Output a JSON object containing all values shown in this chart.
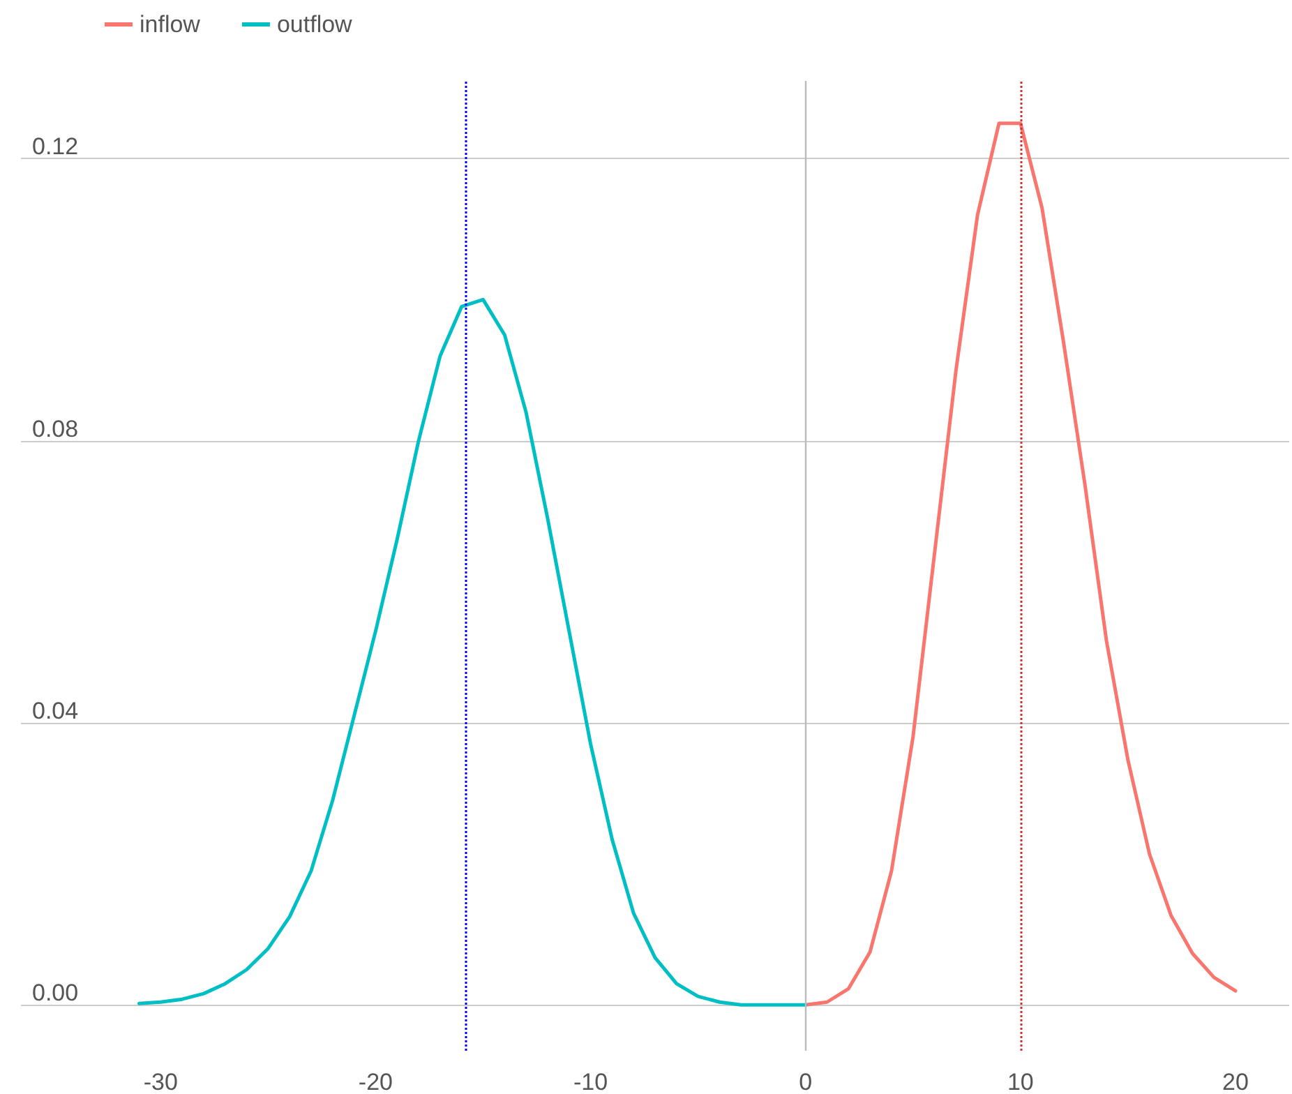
{
  "chart_data": {
    "type": "line",
    "legend": "top left",
    "grid": "y",
    "marker": "none",
    "line_style": "solid",
    "xlim": [
      -36.5,
      22.5
    ],
    "xticks": [
      -30,
      -20,
      -10,
      0,
      10,
      20
    ],
    "ylim": [
      -0.0065,
      0.131
    ],
    "yticks": [
      {
        "value": 0,
        "label": "0.00"
      },
      {
        "value": 0.04,
        "label": "0.04"
      },
      {
        "value": 0.08,
        "label": "0.08"
      },
      {
        "value": 0.12,
        "label": "0.12"
      }
    ],
    "series": [
      {
        "name": "inflow",
        "color": "#f8766d",
        "x": [
          0,
          1,
          2,
          3,
          4,
          5,
          6,
          7,
          8,
          9,
          10,
          11,
          12,
          13,
          14,
          15,
          16,
          17,
          18,
          19,
          20
        ],
        "values": [
          0,
          0.0004,
          0.0023,
          0.0075,
          0.019,
          0.038,
          0.064,
          0.09,
          0.112,
          0.125,
          0.125,
          0.113,
          0.094,
          0.0737,
          0.0516,
          0.0347,
          0.0214,
          0.0127,
          0.0073,
          0.0039,
          0.002
        ]
      },
      {
        "name": "outflow",
        "color": "#00bfc4",
        "x": [
          -31,
          -30,
          -29,
          -28,
          -27,
          -26,
          -25,
          -24,
          -23,
          -22,
          -21,
          -20,
          -19,
          -18,
          -17,
          -16,
          -15,
          -14,
          -13,
          -12,
          -11,
          -10,
          -9,
          -8,
          -7,
          -6,
          -5,
          -4,
          -3,
          -2,
          -1,
          0
        ],
        "values": [
          0.0002,
          0.0004,
          0.0008,
          0.0016,
          0.003,
          0.005,
          0.008,
          0.0125,
          0.019,
          0.029,
          0.041,
          0.053,
          0.066,
          0.08,
          0.092,
          0.099,
          0.1,
          0.095,
          0.084,
          0.069,
          0.053,
          0.037,
          0.0235,
          0.013,
          0.0067,
          0.003,
          0.0012,
          0.0004,
          0,
          0,
          0,
          0
        ]
      }
    ],
    "ref_lines": [
      {
        "axis": "x",
        "value": 0,
        "color": "#bbbbbb",
        "line_style": "solid"
      },
      {
        "axis": "x",
        "value": -15.8,
        "color": "#0000ff",
        "line_style": "dotted"
      },
      {
        "axis": "x",
        "value": 10,
        "color": "#cc3333",
        "line_style": "dotted"
      }
    ]
  }
}
